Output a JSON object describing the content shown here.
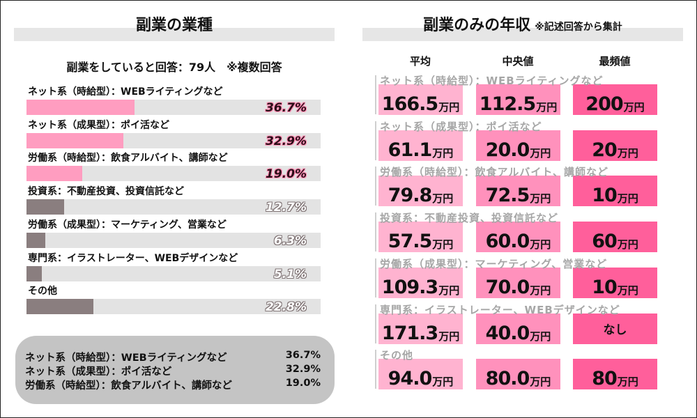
{
  "left": {
    "title": "副業の業種",
    "respondents": "副業をしていると回答：79人　※複数回答"
  },
  "right": {
    "title": "副業のみの年収",
    "note": "※記述回答から集計",
    "col_headers": [
      "平均",
      "中央値",
      "最頻値"
    ]
  },
  "colors": {
    "bar_top": "#ff9dc0",
    "bar_other": "#8a7e7f",
    "track": "#e3e3e3",
    "mode": "#ff5f9b"
  },
  "chart_data": [
    {
      "type": "bar",
      "title": "副業の業種",
      "unit": "%",
      "xlim": [
        0,
        100
      ],
      "categories": [
        "ネット系（時給型）：WEBライティングなど",
        "ネット系（成果型）：ポイ活など",
        "労働系（時給型）：飲食アルバイト、講師など",
        "投資系：不動産投資、投資信託など",
        "労働系（成果型）：マーケティング、営業など",
        "専門系：イラストレーター、WEBデザインなど",
        "その他"
      ],
      "values": [
        36.7,
        32.9,
        19.0,
        12.7,
        6.3,
        5.1,
        22.8
      ],
      "labels": [
        "36.7%",
        "32.9%",
        "19.0%",
        "12.7%",
        "6.3%",
        "5.1%",
        "22.8%"
      ],
      "highlighted": [
        true,
        true,
        true,
        false,
        false,
        false,
        false
      ]
    },
    {
      "type": "table",
      "title": "副業のみの年収",
      "unit": "万円",
      "columns": [
        "平均",
        "中央値",
        "最頻値"
      ],
      "rows": [
        {
          "category": "ネット系（時給型）：WEBライティングなど",
          "values": [
            "166.5",
            "112.5",
            "200"
          ]
        },
        {
          "category": "ネット系（成果型）：ポイ活など",
          "values": [
            "61.1",
            "20.0",
            "20"
          ]
        },
        {
          "category": "労働系（時給型）：飲食アルバイト、講師など",
          "values": [
            "79.8",
            "72.5",
            "10"
          ]
        },
        {
          "category": "投資系：不動産投資、投資信託など",
          "values": [
            "57.5",
            "60.0",
            "60"
          ]
        },
        {
          "category": "労働系（成果型）：マーケティング、営業など",
          "values": [
            "109.3",
            "70.0",
            "10"
          ]
        },
        {
          "category": "専門系：イラストレーター、WEBデザインなど",
          "values": [
            "171.3",
            "40.0",
            "なし"
          ]
        },
        {
          "category": "その他",
          "values": [
            "94.0",
            "80.0",
            "80"
          ]
        }
      ]
    }
  ],
  "summary": [
    {
      "label": "ネット系（時給型）：WEBライティングなど",
      "value": "36.7%"
    },
    {
      "label": "ネット系（成果型）：ポイ活など",
      "value": "32.9%"
    },
    {
      "label": "労働系（時給型）：飲食アルバイト、講師など",
      "value": "19.0%"
    }
  ]
}
